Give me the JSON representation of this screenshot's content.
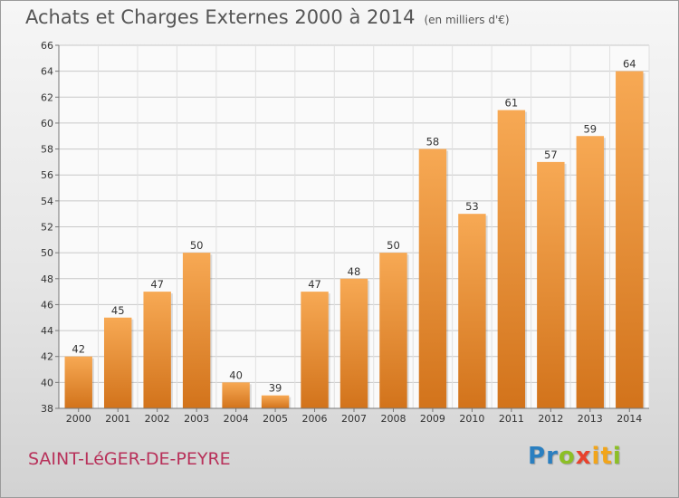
{
  "header": {
    "title": "Achats et Charges Externes 2000 à 2014",
    "unit": "(en milliers d'€)"
  },
  "footer": {
    "commune": "SAINT-LéGER-DE-PEYRE",
    "logo_letters": [
      {
        "ch": "P",
        "color": "#2a7fc0"
      },
      {
        "ch": "r",
        "color": "#2a7fc0"
      },
      {
        "ch": "o",
        "color": "#8cbf26"
      },
      {
        "ch": "x",
        "color": "#e8422d"
      },
      {
        "ch": "i",
        "color": "#f2a51a"
      },
      {
        "ch": "t",
        "color": "#f2a51a"
      },
      {
        "ch": "i",
        "color": "#8cbf26"
      }
    ]
  },
  "colors": {
    "bar_top": "#f7a954",
    "bar_bottom": "#d2731b",
    "grid": "#c8c8c8"
  },
  "chart_data": {
    "type": "bar",
    "title": "Achats et Charges Externes 2000 à 2014",
    "subtitle": "(en milliers d'€)",
    "xlabel": "",
    "ylabel": "",
    "categories": [
      "2000",
      "2001",
      "2002",
      "2003",
      "2004",
      "2005",
      "2006",
      "2007",
      "2008",
      "2009",
      "2010",
      "2011",
      "2012",
      "2013",
      "2014"
    ],
    "values": [
      42,
      45,
      47,
      50,
      40,
      39,
      47,
      48,
      50,
      58,
      53,
      61,
      57,
      59,
      64
    ],
    "ylim": [
      38,
      66
    ],
    "yticks": [
      38,
      40,
      42,
      44,
      46,
      48,
      50,
      52,
      54,
      56,
      58,
      60,
      62,
      64,
      66
    ],
    "grid": true,
    "legend": "none"
  }
}
